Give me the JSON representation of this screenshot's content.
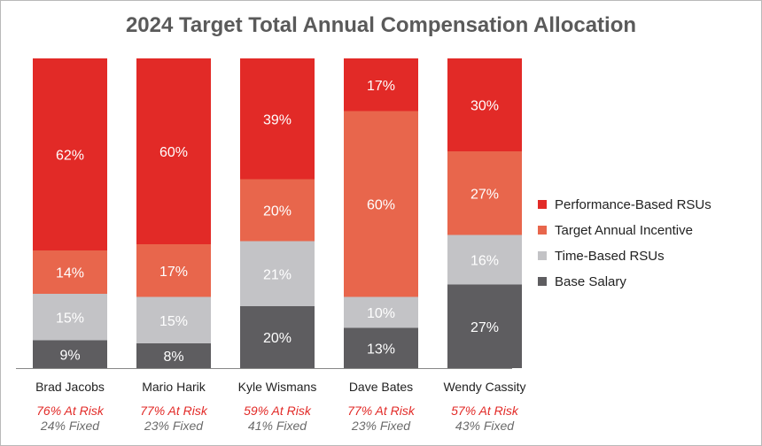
{
  "chart_data": {
    "type": "bar",
    "stacked": true,
    "title": "2024 Target Total Annual Compensation Allocation",
    "categories": [
      "Brad Jacobs",
      "Mario Harik",
      "Kyle Wismans",
      "Dave Bates",
      "Wendy Cassity"
    ],
    "series": [
      {
        "name": "Base Salary",
        "color": "#5e5d60",
        "values": [
          9,
          8,
          20,
          13,
          27
        ]
      },
      {
        "name": "Time-Based RSUs",
        "color": "#c3c3c6",
        "values": [
          15,
          15,
          21,
          10,
          16
        ]
      },
      {
        "name": "Target Annual Incentive",
        "color": "#e8664c",
        "values": [
          14,
          17,
          20,
          60,
          27
        ]
      },
      {
        "name": "Performance-Based RSUs",
        "color": "#e22a27",
        "values": [
          62,
          60,
          39,
          17,
          30
        ]
      }
    ],
    "legend_order": [
      "Performance-Based RSUs",
      "Target Annual Incentive",
      "Time-Based RSUs",
      "Base Salary"
    ],
    "legend_position": "right",
    "ylim": [
      0,
      100
    ],
    "at_risk": [
      "76% At Risk",
      "77% At Risk",
      "59% At Risk",
      "77% At Risk",
      "57% At Risk"
    ],
    "fixed": [
      "24% Fixed",
      "23% Fixed",
      "41% Fixed",
      "23% Fixed",
      "43% Fixed"
    ],
    "colors": {
      "at_risk_text": "#e22a27",
      "fixed_text": "#6b6b6b",
      "axis": "#888888"
    }
  }
}
